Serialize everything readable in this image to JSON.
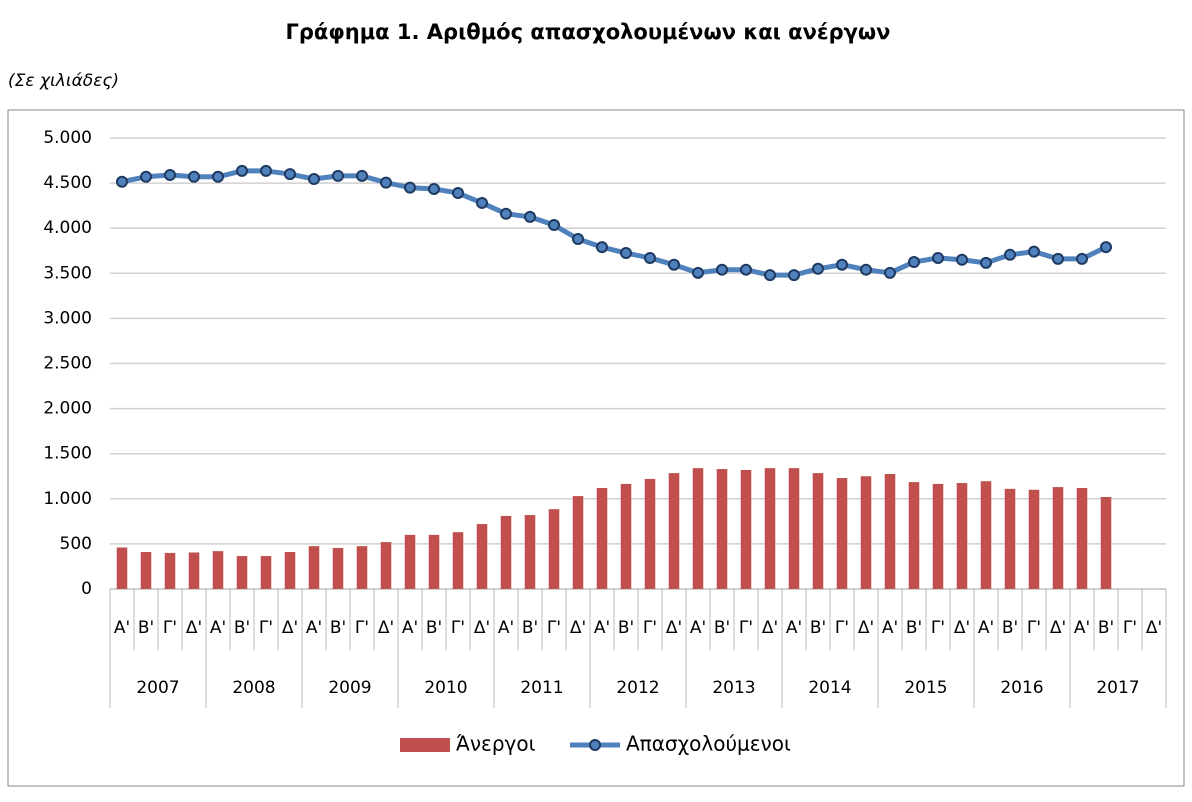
{
  "chart_data": {
    "type": "bar-line",
    "title": "Γράφημα 1. Αριθμός απασχολουμένων και ανέργων",
    "subtitle": "(Σε χιλιάδες)",
    "categories": [
      "Α'",
      "Β'",
      "Γ'",
      "Δ'",
      "Α'",
      "Β'",
      "Γ'",
      "Δ'",
      "Α'",
      "Β'",
      "Γ'",
      "Δ'",
      "Α'",
      "Β'",
      "Γ'",
      "Δ'",
      "Α'",
      "Β'",
      "Γ'",
      "Δ'",
      "Α'",
      "Β'",
      "Γ'",
      "Δ'",
      "Α'",
      "Β'",
      "Γ'",
      "Δ'",
      "Α'",
      "Β'",
      "Γ'",
      "Δ'",
      "Α'",
      "Β'",
      "Γ'",
      "Δ'",
      "Α'",
      "Β'",
      "Γ'",
      "Δ'",
      "Α'",
      "Β'",
      "Γ'",
      "Δ'"
    ],
    "years": [
      "2007",
      "2008",
      "2009",
      "2010",
      "2011",
      "2012",
      "2013",
      "2014",
      "2015",
      "2016",
      "2017"
    ],
    "series": [
      {
        "name": "Άνεργοι",
        "type": "bar",
        "color": "#c0504d",
        "values": [
          460,
          410,
          400,
          405,
          420,
          365,
          365,
          410,
          475,
          455,
          475,
          520,
          600,
          600,
          630,
          720,
          810,
          820,
          885,
          1030,
          1120,
          1165,
          1220,
          1285,
          1340,
          1330,
          1320,
          1340,
          1340,
          1285,
          1230,
          1250,
          1275,
          1185,
          1165,
          1175,
          1195,
          1110,
          1100,
          1130,
          1120,
          1020,
          null,
          null
        ]
      },
      {
        "name": "Απασχολούμενοι",
        "type": "line",
        "color": "#4f81bd",
        "values": [
          4515,
          4570,
          4590,
          4570,
          4570,
          4635,
          4635,
          4600,
          4545,
          4580,
          4580,
          4505,
          4450,
          4435,
          4390,
          4280,
          4160,
          4125,
          4035,
          3880,
          3790,
          3725,
          3670,
          3595,
          3505,
          3540,
          3540,
          3480,
          3480,
          3550,
          3595,
          3540,
          3505,
          3625,
          3670,
          3650,
          3615,
          3705,
          3740,
          3660,
          3660,
          3790,
          null,
          null
        ]
      }
    ],
    "ylim": [
      0,
      5000
    ],
    "yticks": [
      0,
      500,
      {
        "value": 1000,
        "label": "1.000"
      },
      {
        "value": 1500,
        "label": "1.500"
      },
      {
        "value": 2000,
        "label": "2.000"
      },
      {
        "value": 2500,
        "label": "2.500"
      },
      {
        "value": 3000,
        "label": "3.000"
      },
      {
        "value": 3500,
        "label": "3.500"
      },
      {
        "value": 4000,
        "label": "4.000"
      },
      {
        "value": 4500,
        "label": "4.500"
      },
      {
        "value": 5000,
        "label": "5.000"
      }
    ],
    "grid": true,
    "legend": "bottom"
  }
}
